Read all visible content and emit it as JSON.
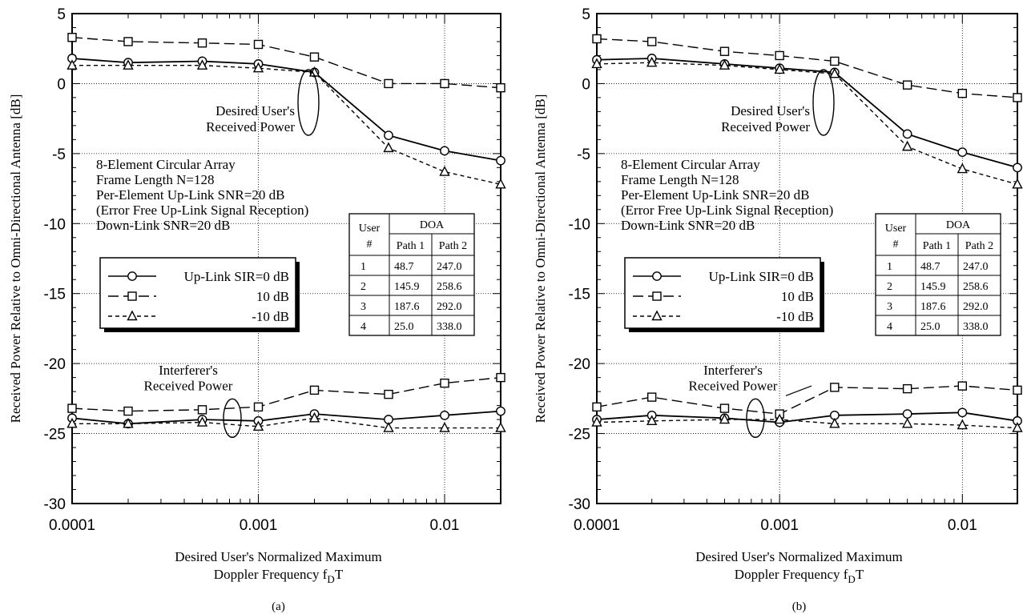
{
  "chart_data": [
    {
      "type": "line",
      "panel_label": "(a)",
      "xscale": "log",
      "xlim": [
        0.0001,
        0.02
      ],
      "ylim": [
        -30,
        5
      ],
      "grid": true,
      "xticks": [
        "0.0001",
        "0.001",
        "0.01"
      ],
      "yticks": [
        "5",
        "0",
        "-5",
        "-10",
        "-15",
        "-20",
        "-25",
        "-30"
      ],
      "ylabel": "Received Power Relative to Omni-Directional Antenna [dB]",
      "xlabel_line1": "Desired User's Normalized Maximum",
      "xlabel_line2": "Doppler Frequency f",
      "xlabel_sub": "D",
      "xlabel_tail": "T",
      "x": [
        0.0001,
        0.0002,
        0.0005,
        0.001,
        0.002,
        0.005,
        0.01,
        0.02
      ],
      "series": [
        {
          "name": "Up-Link SIR=0 dB",
          "group": "desired",
          "style": "solid",
          "marker": "circle",
          "values": [
            1.8,
            1.5,
            1.6,
            1.4,
            0.8,
            -3.7,
            -4.8,
            -5.5
          ]
        },
        {
          "name": "10 dB",
          "group": "desired",
          "style": "longdash",
          "marker": "square",
          "values": [
            3.3,
            3.0,
            2.9,
            2.8,
            1.9,
            0.0,
            0.0,
            -0.3
          ]
        },
        {
          "name": "-10 dB",
          "group": "desired",
          "style": "shortdash",
          "marker": "triangle",
          "values": [
            1.3,
            1.3,
            1.3,
            1.1,
            0.8,
            -4.6,
            -6.3,
            -7.2
          ]
        },
        {
          "name": "Up-Link SIR=0 dB",
          "group": "interferer",
          "style": "solid",
          "marker": "circle",
          "values": [
            -23.9,
            -24.3,
            -24.0,
            -24.1,
            -23.6,
            -24.0,
            -23.7,
            -23.4
          ]
        },
        {
          "name": "10 dB",
          "group": "interferer",
          "style": "longdash",
          "marker": "square",
          "values": [
            -23.2,
            -23.4,
            -23.3,
            -23.1,
            -21.9,
            -22.2,
            -21.4,
            -21.0
          ]
        },
        {
          "name": "-10 dB",
          "group": "interferer",
          "style": "shortdash",
          "marker": "triangle",
          "values": [
            -24.3,
            -24.3,
            -24.2,
            -24.5,
            -23.9,
            -24.6,
            -24.6,
            -24.6
          ]
        }
      ],
      "annotations": {
        "desired": [
          "Desired User's",
          "Received Power"
        ],
        "interferer": [
          "Interferer's",
          "Received Power"
        ]
      },
      "conditions": [
        "8-Element Circular Array",
        "Frame Length N=128",
        "Per-Element Up-Link SNR=20 dB",
        "(Error Free Up-Link Signal Reception)",
        "Down-Link SNR=20 dB"
      ],
      "legend": [
        "Up-Link SIR=0 dB",
        "10 dB",
        "-10 dB"
      ],
      "doa_table": {
        "user_header": [
          "User",
          "#"
        ],
        "doa_header": "DOA",
        "path_headers": [
          "Path 1",
          "Path 2"
        ],
        "rows": [
          [
            "1",
            "48.7",
            "247.0"
          ],
          [
            "2",
            "145.9",
            "258.6"
          ],
          [
            "3",
            "187.6",
            "292.0"
          ],
          [
            "4",
            "25.0",
            "338.0"
          ]
        ]
      }
    },
    {
      "type": "line",
      "panel_label": "(b)",
      "xscale": "log",
      "xlim": [
        0.0001,
        0.02
      ],
      "ylim": [
        -30,
        5
      ],
      "grid": true,
      "xticks": [
        "0.0001",
        "0.001",
        "0.01"
      ],
      "yticks": [
        "5",
        "0",
        "-5",
        "-10",
        "-15",
        "-20",
        "-25",
        "-30"
      ],
      "ylabel": "Received Power Relative to Omni-Directional Antenna [dB]",
      "xlabel_line1": "Desired User's Normalized Maximum",
      "xlabel_line2": "Doppler Frequency f",
      "xlabel_sub": "D",
      "xlabel_tail": "T",
      "x": [
        0.0001,
        0.0002,
        0.0005,
        0.001,
        0.002,
        0.005,
        0.01,
        0.02
      ],
      "series": [
        {
          "name": "Up-Link SIR=0 dB",
          "group": "desired",
          "style": "solid",
          "marker": "circle",
          "values": [
            1.7,
            1.8,
            1.4,
            1.1,
            0.8,
            -3.6,
            -4.9,
            -6.0
          ]
        },
        {
          "name": "10 dB",
          "group": "desired",
          "style": "longdash",
          "marker": "square",
          "values": [
            3.2,
            3.0,
            2.3,
            2.0,
            1.6,
            -0.1,
            -0.7,
            -1.0
          ]
        },
        {
          "name": "-10 dB",
          "group": "desired",
          "style": "shortdash",
          "marker": "triangle",
          "values": [
            1.4,
            1.5,
            1.3,
            1.0,
            0.7,
            -4.5,
            -6.1,
            -7.2
          ]
        },
        {
          "name": "Up-Link SIR=0 dB",
          "group": "interferer",
          "style": "solid",
          "marker": "circle",
          "values": [
            -24.0,
            -23.7,
            -23.9,
            -24.2,
            -23.7,
            -23.6,
            -23.5,
            -24.1
          ]
        },
        {
          "name": "10 dB",
          "group": "interferer",
          "style": "longdash",
          "marker": "square",
          "values": [
            -23.1,
            -22.4,
            -23.2,
            -23.6,
            -21.7,
            -21.8,
            -21.6,
            -21.9
          ]
        },
        {
          "name": "-10 dB",
          "group": "interferer",
          "style": "shortdash",
          "marker": "triangle",
          "values": [
            -24.2,
            -24.1,
            -24.0,
            -24.0,
            -24.3,
            -24.3,
            -24.4,
            -24.6
          ]
        }
      ],
      "annotations": {
        "desired": [
          "Desired User's",
          "Received Power"
        ],
        "interferer": [
          "Interferer's",
          "Received Power"
        ]
      },
      "conditions": [
        "8-Element Circular Array",
        "Frame Length N=128",
        "Per-Element Up-Link SNR=20 dB",
        "(Error Free Up-Link Signal Reception)",
        "Down-Link SNR=20 dB"
      ],
      "legend": [
        "Up-Link SIR=0 dB",
        "10 dB",
        "-10 dB"
      ],
      "doa_table": {
        "user_header": [
          "User",
          "#"
        ],
        "doa_header": "DOA",
        "path_headers": [
          "Path 1",
          "Path 2"
        ],
        "rows": [
          [
            "1",
            "48.7",
            "247.0"
          ],
          [
            "2",
            "145.9",
            "258.6"
          ],
          [
            "3",
            "187.6",
            "292.0"
          ],
          [
            "4",
            "25.0",
            "338.0"
          ]
        ]
      }
    }
  ]
}
